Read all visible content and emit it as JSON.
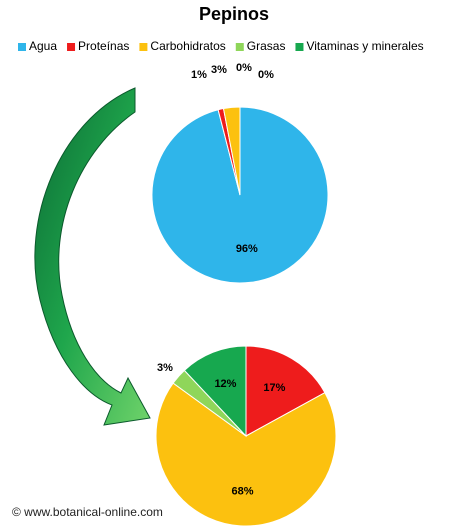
{
  "chart_data": {
    "type": "pie",
    "title": "Pepinos",
    "series": [
      {
        "name": "Agua",
        "color": "#2fb5ea",
        "values": [
          96,
          null
        ],
        "value_labels": [
          "96%",
          null
        ]
      },
      {
        "name": "Proteínas",
        "color": "#ee1c1c",
        "values": [
          1,
          17
        ],
        "value_labels": [
          "1%",
          "17%"
        ]
      },
      {
        "name": "Carbohidratos",
        "color": "#fcc10f",
        "values": [
          3,
          68
        ],
        "value_labels": [
          "3%",
          "68%"
        ]
      },
      {
        "name": "Grasas",
        "color": "#8fd65a",
        "values": [
          0,
          3
        ],
        "value_labels": [
          "0%",
          "3%"
        ]
      },
      {
        "name": "Vitaminas y minerales",
        "color": "#17a84f",
        "values": [
          0,
          12
        ],
        "value_labels": [
          "0%",
          "12%"
        ]
      }
    ],
    "source": "© www.botanical-online.com"
  }
}
